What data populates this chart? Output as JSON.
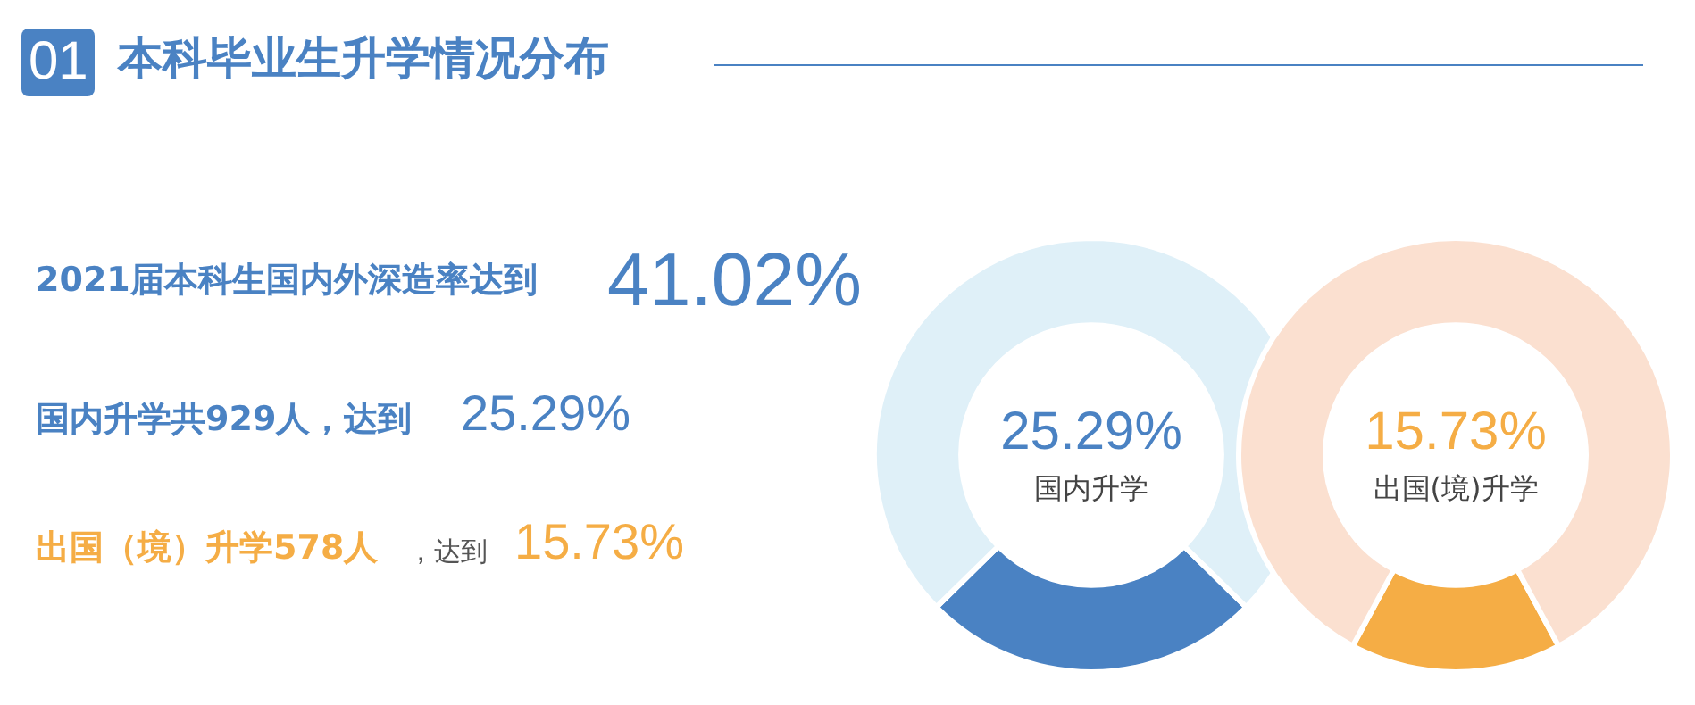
{
  "chart_data": [
    {
      "type": "other",
      "title": "本科毕业生升学情况分布",
      "annotations": [
        "01",
        "2021届本科生国内外深造率达到",
        "41.02%",
        "国内升学共929人，达到",
        "25.29%",
        "出国（境）升学578人",
        "，达到",
        "15.73%"
      ]
    },
    {
      "type": "donut",
      "categories": [
        "国内升学",
        null
      ],
      "values": [
        25.29,
        74.71
      ],
      "colors": [
        "#4a82c3",
        "#dff0f8"
      ],
      "value_labels": [
        "25.29%",
        null
      ]
    },
    {
      "type": "donut",
      "categories": [
        "出国(境)升学",
        null
      ],
      "values": [
        15.73,
        84.27
      ],
      "colors": [
        "#f5ad45",
        "#fbe0d0"
      ],
      "value_labels": [
        "15.73%",
        null
      ]
    }
  ]
}
